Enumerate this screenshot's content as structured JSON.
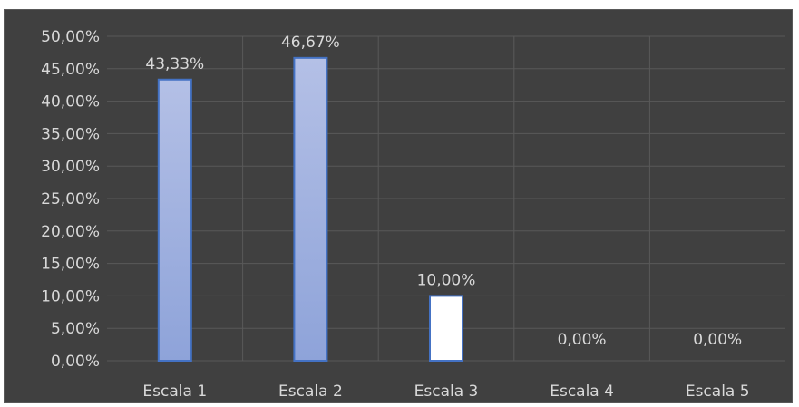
{
  "chart_data": {
    "type": "bar",
    "categories": [
      "Escala 1",
      "Escala 2",
      "Escala 3",
      "Escala 4",
      "Escala 5"
    ],
    "values": [
      43.33,
      46.67,
      10.0,
      0.0,
      0.0
    ],
    "data_labels": [
      "43,33%",
      "46,67%",
      "10,00%",
      "0,00%",
      "0,00%"
    ],
    "y_tick_labels": [
      "0,00%",
      "5,00%",
      "10,00%",
      "15,00%",
      "20,00%",
      "25,00%",
      "30,00%",
      "35,00%",
      "40,00%",
      "45,00%",
      "50,00%"
    ],
    "ylim": [
      0,
      50
    ],
    "title": "",
    "xlabel": "",
    "ylabel": "",
    "grid": true,
    "legend": "none",
    "colors": {
      "background": "#404040",
      "gridline": "#595959",
      "text": "#d9d9d9",
      "bar_gradient_top": "#b4c0e6",
      "bar_gradient_bottom": "#8ea3d9",
      "bar_highlight_fill": "#ffffff",
      "bar_border": "#4472c4"
    },
    "highlighted_index": 2
  }
}
